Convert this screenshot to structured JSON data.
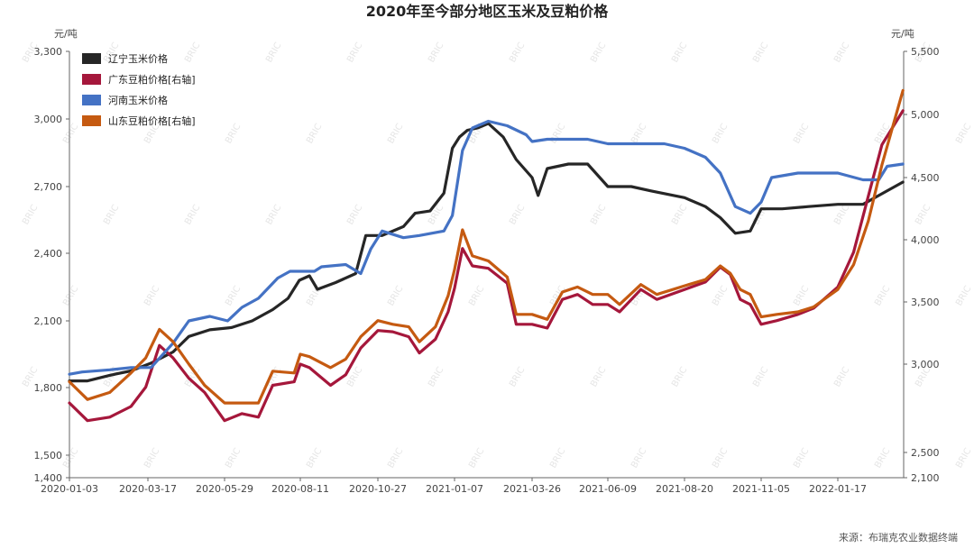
{
  "chart_data": {
    "type": "line",
    "title": "2020年至今部分地区玉米及豆粕价格",
    "ylabel_left": "元/吨",
    "ylabel_right": "元/吨",
    "ylim_left": [
      1400,
      3300
    ],
    "ylim_right": [
      2100,
      5500
    ],
    "yticks_left": [
      "1,400",
      "1,500",
      "1,800",
      "2,100",
      "2,400",
      "2,700",
      "3,000",
      "3,300"
    ],
    "yticks_right": [
      "2,100",
      "2,500",
      "3,000",
      "3,500",
      "4,000",
      "4,500",
      "5,000",
      "5,500"
    ],
    "x_ticks": [
      "2020-01-03",
      "2020-03-17",
      "2020-05-29",
      "2020-08-11",
      "2020-10-27",
      "2021-01-07",
      "2021-03-26",
      "2021-06-09",
      "2021-08-20",
      "2021-11-05",
      "2022-01-17"
    ],
    "source": "来源：布瑞克农业数据终端",
    "watermark": "BRIC",
    "grid": false,
    "legend_position": "top-left",
    "series": [
      {
        "name": "辽宁玉米价格",
        "axis": "left",
        "color": "#262626",
        "points": [
          [
            "2020-01-03",
            1830
          ],
          [
            "2020-01-20",
            1830
          ],
          [
            "2020-02-10",
            1855
          ],
          [
            "2020-03-01",
            1875
          ],
          [
            "2020-03-20",
            1910
          ],
          [
            "2020-04-10",
            1960
          ],
          [
            "2020-04-25",
            2030
          ],
          [
            "2020-05-15",
            2060
          ],
          [
            "2020-06-05",
            2070
          ],
          [
            "2020-06-25",
            2100
          ],
          [
            "2020-07-15",
            2150
          ],
          [
            "2020-07-30",
            2200
          ],
          [
            "2020-08-10",
            2280
          ],
          [
            "2020-08-20",
            2300
          ],
          [
            "2020-08-28",
            2240
          ],
          [
            "2020-09-15",
            2270
          ],
          [
            "2020-10-05",
            2310
          ],
          [
            "2020-10-15",
            2480
          ],
          [
            "2020-10-31",
            2480
          ],
          [
            "2020-11-20",
            2520
          ],
          [
            "2020-12-01",
            2580
          ],
          [
            "2020-12-15",
            2590
          ],
          [
            "2020-12-28",
            2670
          ],
          [
            "2021-01-05",
            2870
          ],
          [
            "2021-01-12",
            2920
          ],
          [
            "2021-01-20",
            2950
          ],
          [
            "2021-01-30",
            2960
          ],
          [
            "2021-02-10",
            2980
          ],
          [
            "2021-02-25",
            2920
          ],
          [
            "2021-03-10",
            2820
          ],
          [
            "2021-03-20",
            2770
          ],
          [
            "2021-03-26",
            2740
          ],
          [
            "2021-04-01",
            2660
          ],
          [
            "2021-04-10",
            2780
          ],
          [
            "2021-05-01",
            2800
          ],
          [
            "2021-05-20",
            2800
          ],
          [
            "2021-06-09",
            2700
          ],
          [
            "2021-07-01",
            2700
          ],
          [
            "2021-07-20",
            2680
          ],
          [
            "2021-08-20",
            2650
          ],
          [
            "2021-09-10",
            2610
          ],
          [
            "2021-09-25",
            2560
          ],
          [
            "2021-10-10",
            2490
          ],
          [
            "2021-10-25",
            2500
          ],
          [
            "2021-11-05",
            2600
          ],
          [
            "2021-11-25",
            2600
          ],
          [
            "2021-12-20",
            2610
          ],
          [
            "2022-01-17",
            2620
          ],
          [
            "2022-02-10",
            2620
          ],
          [
            "2022-02-25",
            2660
          ],
          [
            "2022-03-20",
            2720
          ]
        ]
      },
      {
        "name": "广东豆粕价格[右轴]",
        "axis": "right",
        "color": "#a5173b",
        "points": [
          [
            "2020-01-03",
            2780
          ],
          [
            "2020-01-20",
            2680
          ],
          [
            "2020-02-10",
            2700
          ],
          [
            "2020-03-01",
            2760
          ],
          [
            "2020-03-15",
            2870
          ],
          [
            "2020-03-28",
            3150
          ],
          [
            "2020-04-10",
            3050
          ],
          [
            "2020-04-25",
            2920
          ],
          [
            "2020-05-10",
            2840
          ],
          [
            "2020-05-29",
            2680
          ],
          [
            "2020-06-15",
            2720
          ],
          [
            "2020-07-01",
            2700
          ],
          [
            "2020-07-15",
            2880
          ],
          [
            "2020-08-05",
            2900
          ],
          [
            "2020-08-11",
            3000
          ],
          [
            "2020-08-20",
            2980
          ],
          [
            "2020-09-10",
            2880
          ],
          [
            "2020-09-25",
            2940
          ],
          [
            "2020-10-10",
            3130
          ],
          [
            "2020-10-27",
            3270
          ],
          [
            "2020-11-10",
            3260
          ],
          [
            "2020-11-25",
            3220
          ],
          [
            "2020-12-05",
            3090
          ],
          [
            "2020-12-20",
            3200
          ],
          [
            "2021-01-01",
            3420
          ],
          [
            "2021-01-07",
            3610
          ],
          [
            "2021-01-15",
            3930
          ],
          [
            "2021-01-25",
            3790
          ],
          [
            "2021-02-10",
            3770
          ],
          [
            "2021-03-01",
            3650
          ],
          [
            "2021-03-10",
            3320
          ],
          [
            "2021-03-26",
            3320
          ],
          [
            "2021-04-10",
            3290
          ],
          [
            "2021-04-25",
            3520
          ],
          [
            "2021-05-10",
            3560
          ],
          [
            "2021-05-25",
            3480
          ],
          [
            "2021-06-09",
            3480
          ],
          [
            "2021-06-20",
            3420
          ],
          [
            "2021-07-10",
            3600
          ],
          [
            "2021-07-25",
            3520
          ],
          [
            "2021-08-20",
            3600
          ],
          [
            "2021-09-10",
            3660
          ],
          [
            "2021-09-25",
            3780
          ],
          [
            "2021-10-05",
            3720
          ],
          [
            "2021-10-15",
            3520
          ],
          [
            "2021-10-25",
            3480
          ],
          [
            "2021-11-05",
            3320
          ],
          [
            "2021-11-20",
            3350
          ],
          [
            "2021-12-10",
            3400
          ],
          [
            "2021-12-25",
            3450
          ],
          [
            "2022-01-17",
            3620
          ],
          [
            "2022-02-01",
            3900
          ],
          [
            "2022-02-15",
            4350
          ],
          [
            "2022-02-28",
            4760
          ],
          [
            "2022-03-20",
            5030
          ]
        ]
      },
      {
        "name": "河南玉米价格",
        "axis": "left",
        "color": "#4472c4",
        "points": [
          [
            "2020-01-03",
            1860
          ],
          [
            "2020-01-15",
            1870
          ],
          [
            "2020-02-10",
            1880
          ],
          [
            "2020-03-01",
            1890
          ],
          [
            "2020-03-20",
            1890
          ],
          [
            "2020-04-10",
            2000
          ],
          [
            "2020-04-25",
            2100
          ],
          [
            "2020-05-15",
            2120
          ],
          [
            "2020-06-01",
            2100
          ],
          [
            "2020-06-15",
            2160
          ],
          [
            "2020-07-01",
            2200
          ],
          [
            "2020-07-20",
            2290
          ],
          [
            "2020-08-01",
            2320
          ],
          [
            "2020-08-25",
            2320
          ],
          [
            "2020-09-01",
            2340
          ],
          [
            "2020-09-25",
            2350
          ],
          [
            "2020-10-10",
            2310
          ],
          [
            "2020-10-20",
            2420
          ],
          [
            "2020-10-31",
            2500
          ],
          [
            "2020-11-20",
            2470
          ],
          [
            "2020-12-05",
            2480
          ],
          [
            "2020-12-28",
            2500
          ],
          [
            "2021-01-05",
            2570
          ],
          [
            "2021-01-15",
            2860
          ],
          [
            "2021-01-25",
            2960
          ],
          [
            "2021-02-10",
            2990
          ],
          [
            "2021-03-01",
            2970
          ],
          [
            "2021-03-20",
            2930
          ],
          [
            "2021-03-26",
            2900
          ],
          [
            "2021-04-10",
            2910
          ],
          [
            "2021-05-01",
            2910
          ],
          [
            "2021-05-20",
            2910
          ],
          [
            "2021-06-09",
            2890
          ],
          [
            "2021-07-01",
            2890
          ],
          [
            "2021-08-01",
            2890
          ],
          [
            "2021-08-20",
            2870
          ],
          [
            "2021-09-10",
            2830
          ],
          [
            "2021-09-25",
            2760
          ],
          [
            "2021-10-10",
            2610
          ],
          [
            "2021-10-25",
            2580
          ],
          [
            "2021-11-05",
            2630
          ],
          [
            "2021-11-15",
            2740
          ],
          [
            "2021-12-10",
            2760
          ],
          [
            "2022-01-17",
            2760
          ],
          [
            "2022-02-10",
            2730
          ],
          [
            "2022-02-25",
            2730
          ],
          [
            "2022-03-05",
            2790
          ],
          [
            "2022-03-20",
            2800
          ]
        ]
      },
      {
        "name": "山东豆粕价格[右轴]",
        "axis": "right",
        "color": "#c55a11",
        "points": [
          [
            "2020-01-03",
            2900
          ],
          [
            "2020-01-20",
            2800
          ],
          [
            "2020-02-10",
            2840
          ],
          [
            "2020-03-01",
            2950
          ],
          [
            "2020-03-15",
            3050
          ],
          [
            "2020-03-28",
            3280
          ],
          [
            "2020-04-10",
            3180
          ],
          [
            "2020-04-25",
            3000
          ],
          [
            "2020-05-10",
            2880
          ],
          [
            "2020-05-29",
            2780
          ],
          [
            "2020-06-15",
            2780
          ],
          [
            "2020-07-01",
            2780
          ],
          [
            "2020-07-15",
            2960
          ],
          [
            "2020-08-05",
            2950
          ],
          [
            "2020-08-11",
            3080
          ],
          [
            "2020-08-20",
            3060
          ],
          [
            "2020-09-10",
            2980
          ],
          [
            "2020-09-25",
            3040
          ],
          [
            "2020-10-10",
            3220
          ],
          [
            "2020-10-27",
            3350
          ],
          [
            "2020-11-10",
            3320
          ],
          [
            "2020-11-25",
            3300
          ],
          [
            "2020-12-05",
            3180
          ],
          [
            "2020-12-20",
            3300
          ],
          [
            "2021-01-01",
            3550
          ],
          [
            "2021-01-07",
            3760
          ],
          [
            "2021-01-15",
            4080
          ],
          [
            "2021-01-25",
            3870
          ],
          [
            "2021-02-10",
            3830
          ],
          [
            "2021-03-01",
            3700
          ],
          [
            "2021-03-10",
            3400
          ],
          [
            "2021-03-26",
            3400
          ],
          [
            "2021-04-10",
            3360
          ],
          [
            "2021-04-25",
            3580
          ],
          [
            "2021-05-10",
            3620
          ],
          [
            "2021-05-25",
            3560
          ],
          [
            "2021-06-09",
            3560
          ],
          [
            "2021-06-20",
            3480
          ],
          [
            "2021-07-10",
            3640
          ],
          [
            "2021-07-25",
            3560
          ],
          [
            "2021-08-20",
            3630
          ],
          [
            "2021-09-10",
            3680
          ],
          [
            "2021-09-25",
            3790
          ],
          [
            "2021-10-05",
            3730
          ],
          [
            "2021-10-15",
            3600
          ],
          [
            "2021-10-25",
            3560
          ],
          [
            "2021-11-05",
            3380
          ],
          [
            "2021-11-20",
            3400
          ],
          [
            "2021-12-10",
            3420
          ],
          [
            "2021-12-25",
            3460
          ],
          [
            "2022-01-17",
            3600
          ],
          [
            "2022-02-01",
            3800
          ],
          [
            "2022-02-15",
            4150
          ],
          [
            "2022-02-28",
            4600
          ],
          [
            "2022-03-20",
            5190
          ]
        ]
      }
    ]
  }
}
